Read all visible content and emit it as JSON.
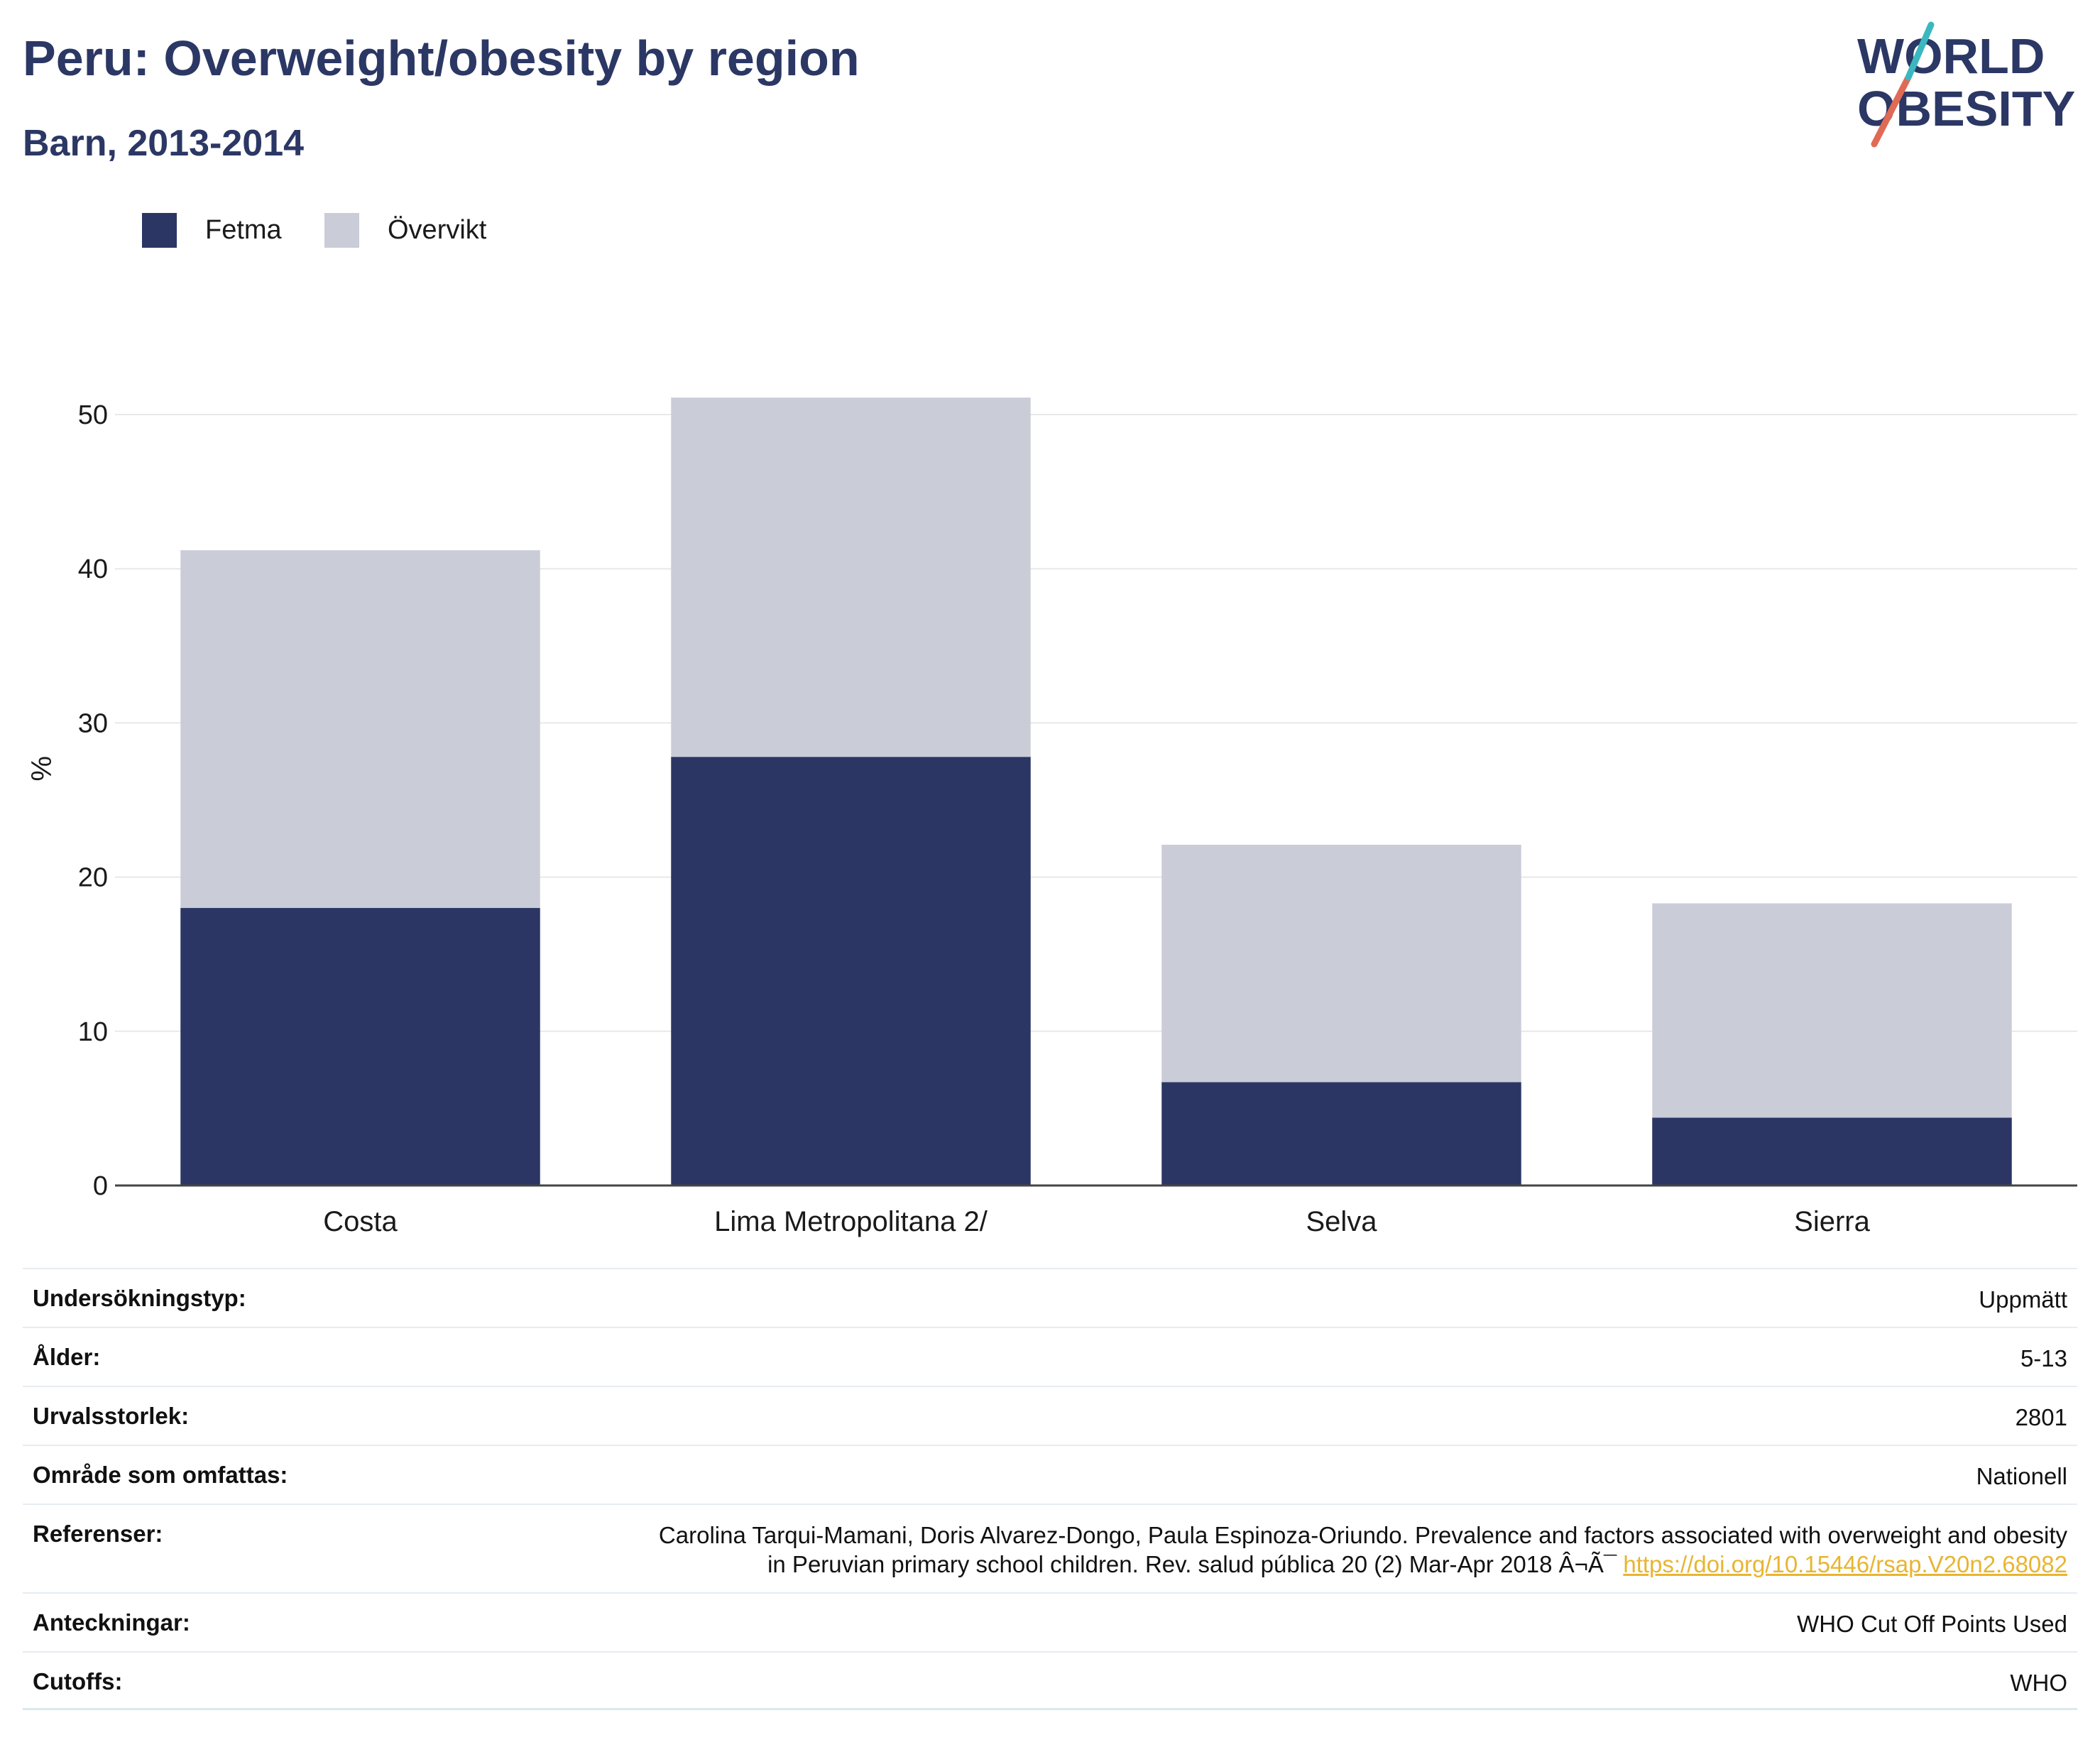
{
  "header": {
    "title": "Peru: Overweight/obesity by region",
    "subtitle": "Barn, 2013-2014"
  },
  "logo": {
    "line1": "WORLD",
    "line2": "OBESITY"
  },
  "colors": {
    "fetma": "#2b3664",
    "overvikt": "#cacdd8",
    "title": "#2b3764",
    "link": "#e8b530",
    "grid": "#e8e8e8"
  },
  "chart_data": {
    "type": "bar",
    "stacked": true,
    "categories": [
      "Costa",
      "Lima Metropolitana 2/",
      "Selva",
      "Sierra"
    ],
    "series": [
      {
        "name": "Fetma",
        "values": [
          18.0,
          27.8,
          6.7,
          4.4
        ]
      },
      {
        "name": "Övervikt",
        "values": [
          23.2,
          23.3,
          15.4,
          13.9
        ]
      }
    ],
    "ylabel": "%",
    "ylim": [
      0,
      55
    ],
    "yticks": [
      0,
      10,
      20,
      30,
      40,
      50
    ],
    "grid": true,
    "legend": "top-left"
  },
  "info": [
    {
      "label": "Undersökningstyp:",
      "value": "Uppmätt"
    },
    {
      "label": "Ålder:",
      "value": "5-13"
    },
    {
      "label": "Urvalsstorlek:",
      "value": "2801"
    },
    {
      "label": "Område som omfattas:",
      "value": "Nationell"
    },
    {
      "label": "Referenser:",
      "value_line1": "Carolina Tarqui-Mamani, Doris Alvarez-Dongo, Paula Espinoza-Oriundo. Prevalence and factors associated with overweight and obesity",
      "value_line2": "in Peruvian primary school children. Rev. salud pública 20 (2) Mar-Apr 2018 Â¬Ã¯ ",
      "link": "https://doi.org/10.15446/rsap.V20n2.68082"
    },
    {
      "label": "Anteckningar:",
      "value": "WHO Cut Off Points Used"
    },
    {
      "label": "Cutoffs:",
      "value": "WHO"
    }
  ]
}
